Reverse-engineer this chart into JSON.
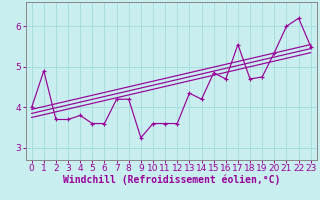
{
  "title": "",
  "xlabel": "Windchill (Refroidissement éolien,°C)",
  "ylabel": "",
  "bg_color": "#c8eef0",
  "grid_color": "#aadddd",
  "line_color": "#990099",
  "xlim": [
    -0.5,
    23.5
  ],
  "ylim": [
    2.7,
    6.6
  ],
  "xticks": [
    0,
    1,
    2,
    3,
    4,
    5,
    6,
    7,
    8,
    9,
    10,
    11,
    12,
    13,
    14,
    15,
    16,
    17,
    18,
    19,
    20,
    21,
    22,
    23
  ],
  "yticks": [
    3,
    4,
    5,
    6
  ],
  "data_x": [
    0,
    1,
    2,
    3,
    4,
    5,
    6,
    7,
    8,
    9,
    10,
    11,
    12,
    13,
    14,
    15,
    16,
    17,
    18,
    19,
    20,
    21,
    22,
    23
  ],
  "data_y": [
    4.0,
    4.9,
    3.7,
    3.7,
    3.8,
    3.6,
    3.6,
    4.2,
    4.2,
    3.25,
    3.6,
    3.6,
    3.6,
    4.35,
    4.2,
    4.85,
    4.7,
    5.55,
    4.7,
    4.75,
    5.35,
    6.0,
    6.2,
    5.5
  ],
  "reg_lines": [
    {
      "x0": 0,
      "x1": 23,
      "y0": 3.85,
      "y1": 5.45
    },
    {
      "x0": 0,
      "x1": 23,
      "y0": 3.75,
      "y1": 5.35
    },
    {
      "x0": 0,
      "x1": 23,
      "y0": 3.95,
      "y1": 5.55
    }
  ],
  "font_color": "#990099",
  "tick_fontsize": 6.5,
  "label_fontsize": 7,
  "spine_color": "#888888"
}
